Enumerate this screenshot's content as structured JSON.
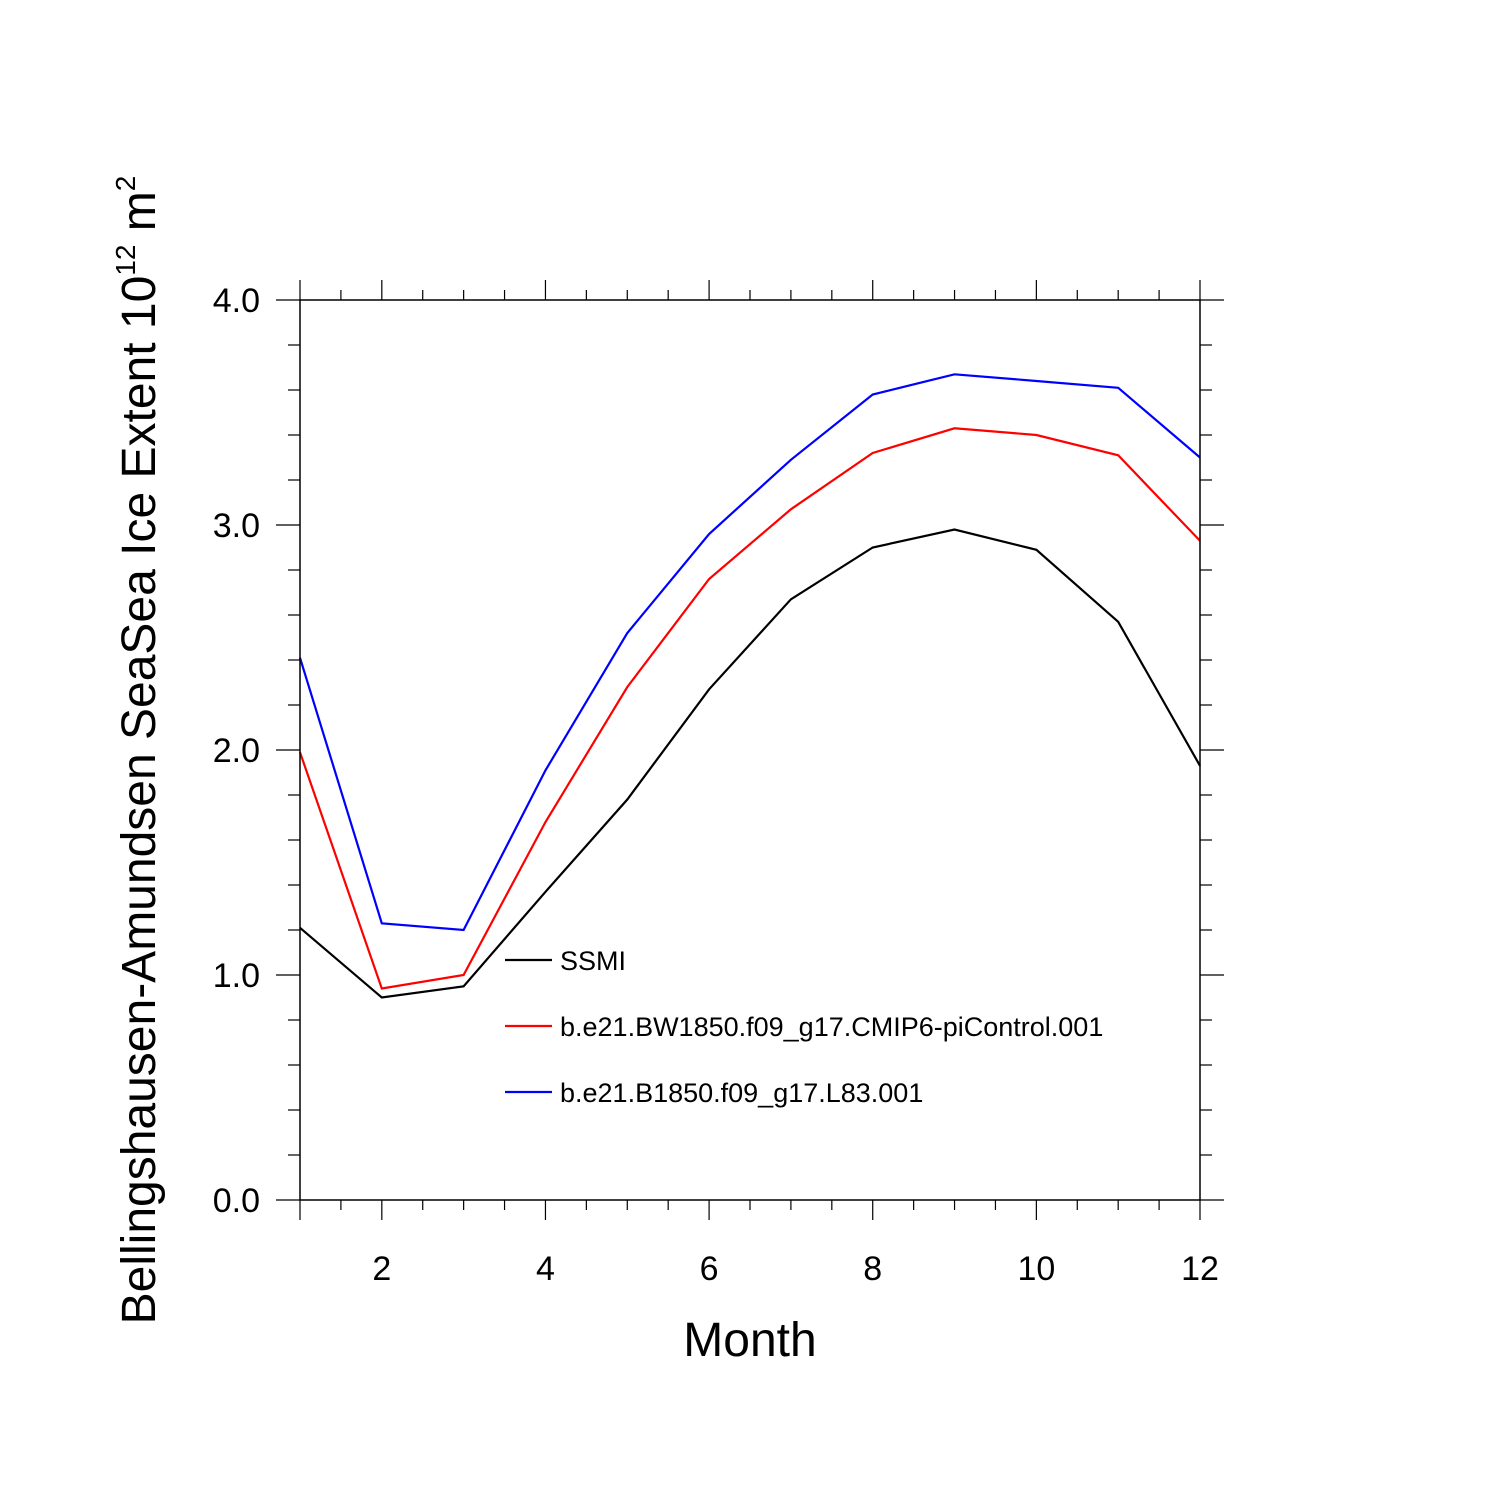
{
  "chart_data": {
    "type": "line",
    "xlabel": "Month",
    "ylabel": {
      "text": "Bellingshausen-Amundsen SeaSea Ice Extent 10",
      "sup": "12",
      "unit": " m",
      "unit_sup": "2"
    },
    "xlim": [
      1,
      12
    ],
    "ylim": [
      0,
      4
    ],
    "x_ticks": [
      2,
      4,
      6,
      8,
      10,
      12
    ],
    "x_tick_labels": [
      "2",
      "4",
      "6",
      "8",
      "10",
      "12"
    ],
    "y_ticks": [
      0,
      1,
      2,
      3,
      4
    ],
    "y_tick_labels": [
      "0.0",
      "1.0",
      "2.0",
      "3.0",
      "4.0"
    ],
    "x_minor_step": 0.5,
    "y_minor_step": 0.2,
    "grid": false,
    "legend_position": "lower-right inside",
    "x": [
      1,
      2,
      3,
      4,
      5,
      6,
      7,
      8,
      9,
      10,
      11,
      12
    ],
    "series": [
      {
        "name": "SSMI",
        "color": "#000000",
        "values": [
          1.21,
          0.9,
          0.95,
          1.37,
          1.78,
          2.27,
          2.67,
          2.9,
          2.98,
          2.89,
          2.57,
          1.93
        ]
      },
      {
        "name": "b.e21.BW1850.f09_g17.CMIP6-piControl.001",
        "color": "#ff0000",
        "values": [
          1.99,
          0.94,
          1.0,
          1.68,
          2.28,
          2.76,
          3.07,
          3.32,
          3.43,
          3.4,
          3.31,
          2.93
        ]
      },
      {
        "name": "b.e21.B1850.f09_g17.L83.001",
        "color": "#0000ff",
        "values": [
          2.41,
          1.23,
          1.2,
          1.91,
          2.52,
          2.96,
          3.29,
          3.58,
          3.67,
          3.64,
          3.61,
          3.3
        ]
      }
    ]
  }
}
